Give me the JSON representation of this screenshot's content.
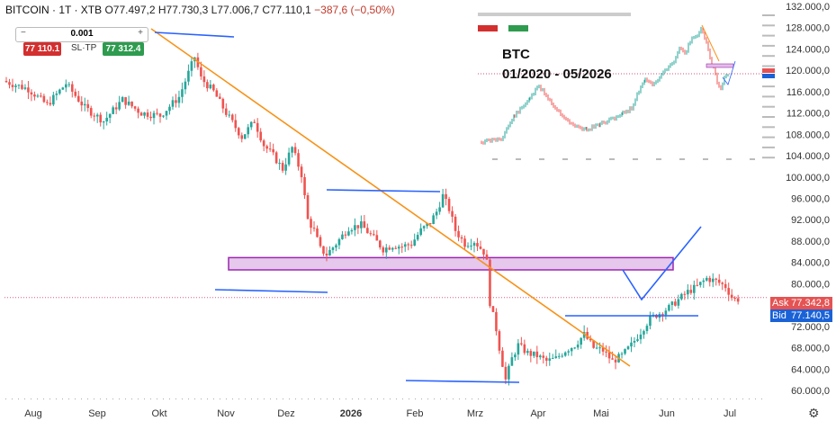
{
  "header": {
    "symbol": "BITCOIN · 1T · XTB",
    "open": "O77.497,2",
    "high": "H77.730,3",
    "low": "L77.006,7",
    "close": "C77.110,1",
    "change": "−387,6 (−0,50%)"
  },
  "trade_panel": {
    "minus": "−",
    "quantity": "0.001",
    "plus": "+",
    "sell_price": "77 110.1",
    "sltp_label": "SL·TP",
    "buy_price": "77 312.4"
  },
  "price_tags": {
    "ask_label": "Ask",
    "ask_value": "77.342,8",
    "bid_label": "Bid",
    "bid_value": "77.140,5"
  },
  "inset": {
    "title": "BTC",
    "range": "01/2020 - 05/2026"
  },
  "colors": {
    "up": "#26a69a",
    "down": "#ef5350",
    "trend": "#f7931a",
    "support": "#2962ff",
    "zone_fill": "#e1bee7",
    "zone_border": "#9c27b0",
    "ask": "#e55353",
    "bid": "#1a62d6"
  },
  "chart_data": {
    "type": "candlestick",
    "y_axis_labels": [
      "132.000,0",
      "128.000,0",
      "124.000,0",
      "120.000,0",
      "116.000,0",
      "112.000,0",
      "108.000,0",
      "104.000,0",
      "100.000,0",
      "96.000,0",
      "92.000,0",
      "88.000,0",
      "84.000,0",
      "80.000,0",
      "76.000,0",
      "72.000,0",
      "68.000,0",
      "64.000,0",
      "60.000,0"
    ],
    "ylim": [
      58500,
      133000
    ],
    "x_axis_labels": [
      "Aug",
      "Sep",
      "Okt",
      "Nov",
      "Dez",
      "2026",
      "Feb",
      "Mrz",
      "Apr",
      "Mai",
      "Jun",
      "Jul"
    ],
    "x_bold_labels": [
      "2026"
    ],
    "path_keypoints": [
      [
        0,
        118000
      ],
      [
        8,
        116500
      ],
      [
        14,
        113500
      ],
      [
        20,
        117500
      ],
      [
        26,
        113000
      ],
      [
        32,
        110500
      ],
      [
        38,
        114500
      ],
      [
        44,
        112000
      ],
      [
        50,
        111500
      ],
      [
        56,
        115000
      ],
      [
        59,
        119500
      ],
      [
        61,
        122500
      ],
      [
        63,
        118500
      ],
      [
        67,
        116000
      ],
      [
        71,
        112000
      ],
      [
        76,
        107500
      ],
      [
        80,
        110500
      ],
      [
        83,
        106000
      ],
      [
        86,
        104000
      ],
      [
        89,
        101500
      ],
      [
        92,
        105500
      ],
      [
        95,
        100500
      ],
      [
        97,
        92000
      ],
      [
        99,
        90000
      ],
      [
        101,
        86500
      ],
      [
        103,
        85500
      ],
      [
        106,
        87500
      ],
      [
        110,
        90500
      ],
      [
        114,
        91000
      ],
      [
        118,
        88500
      ],
      [
        121,
        86500
      ],
      [
        124,
        87200
      ],
      [
        127,
        87000
      ],
      [
        130,
        87500
      ],
      [
        133,
        90000
      ],
      [
        136,
        91500
      ],
      [
        138,
        93500
      ],
      [
        140,
        96500
      ],
      [
        142,
        94000
      ],
      [
        144,
        90000
      ],
      [
        147,
        87500
      ],
      [
        150,
        88000
      ],
      [
        153,
        86000
      ],
      [
        154,
        84000
      ],
      [
        155,
        76500
      ],
      [
        157,
        71500
      ],
      [
        158,
        68000
      ],
      [
        160,
        62000
      ],
      [
        162,
        66000
      ],
      [
        164,
        68500
      ],
      [
        167,
        67000
      ],
      [
        170,
        66500
      ],
      [
        173,
        65500
      ],
      [
        176,
        66000
      ],
      [
        179,
        67500
      ],
      [
        182,
        68500
      ],
      [
        185,
        70500
      ],
      [
        188,
        68000
      ],
      [
        191,
        67500
      ],
      [
        194,
        65500
      ],
      [
        197,
        66500
      ],
      [
        200,
        68500
      ],
      [
        203,
        71000
      ],
      [
        206,
        73500
      ],
      [
        209,
        74500
      ],
      [
        212,
        75500
      ],
      [
        215,
        77000
      ],
      [
        218,
        78500
      ],
      [
        221,
        79500
      ],
      [
        224,
        81000
      ],
      [
        227,
        80500
      ],
      [
        230,
        79500
      ],
      [
        232,
        77500
      ],
      [
        233,
        77110
      ]
    ],
    "candle_count": 234,
    "last_close": 77110.1,
    "ask": 77342.8,
    "bid": 77140.5,
    "annotations": [
      {
        "type": "trendline",
        "color": "orange",
        "from": [
          0,
          129500
        ],
        "to": [
          [
            233,
            66500
          ]
        ]
      },
      {
        "type": "hline",
        "color": "blue",
        "at": 129200
      },
      {
        "type": "hline",
        "color": "blue",
        "at": 97500
      },
      {
        "type": "hline",
        "color": "blue",
        "at": 78500
      },
      {
        "type": "hline",
        "color": "blue",
        "at": 74800
      },
      {
        "type": "hline",
        "color": "blue",
        "at": 62500
      },
      {
        "type": "zone",
        "color": "purple",
        "y_range": [
          82600,
          84900
        ]
      },
      {
        "type": "projection",
        "color": "blue",
        "points": [
          [
            224,
            81500
          ],
          [
            230,
            77500
          ],
          [
            241,
            91000
          ]
        ]
      }
    ],
    "inset": {
      "title": "BTC",
      "subtitle": "01/2020 - 05/2026",
      "type": "candlestick"
    }
  }
}
